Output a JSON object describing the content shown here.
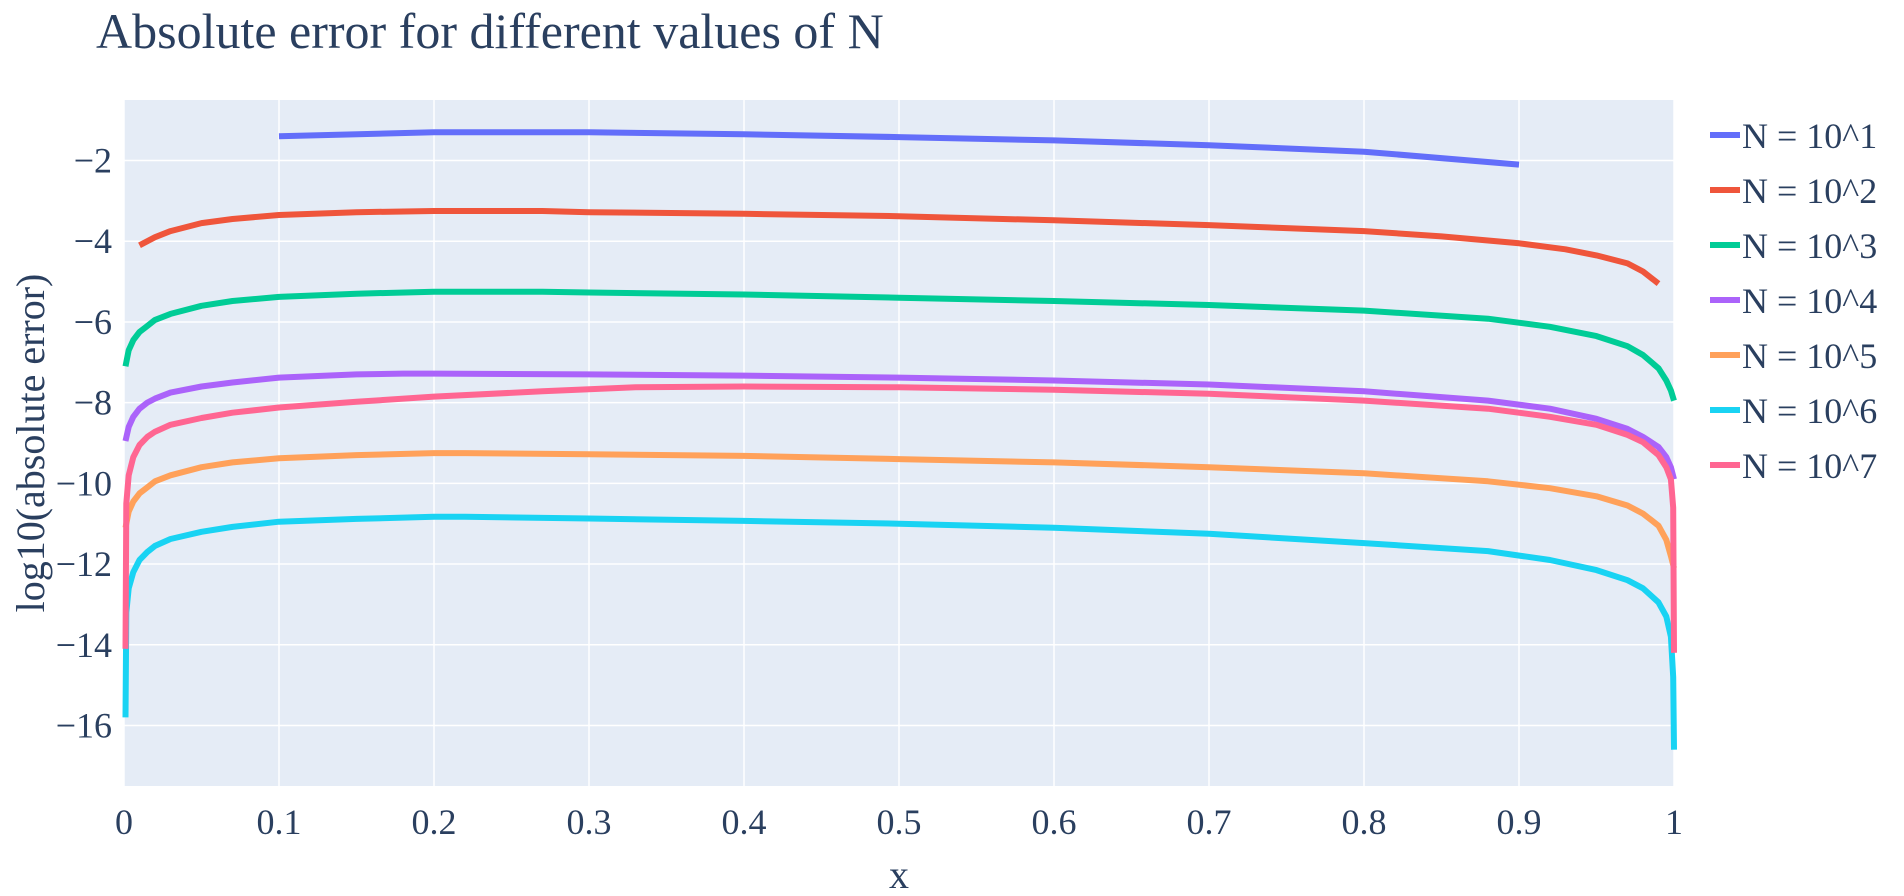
{
  "chart_data": {
    "type": "line",
    "title": "Absolute error for different values of N",
    "xlabel": "x",
    "ylabel": "log10(absolute error)",
    "xlim": [
      0,
      1
    ],
    "ylim": [
      -17.5,
      -0.5
    ],
    "x_ticks": [
      0,
      0.1,
      0.2,
      0.3,
      0.4,
      0.5,
      0.6,
      0.7,
      0.8,
      0.9,
      1
    ],
    "x_tick_labels": [
      "0",
      "0.1",
      "0.2",
      "0.3",
      "0.4",
      "0.5",
      "0.6",
      "0.7",
      "0.8",
      "0.9",
      "1"
    ],
    "y_ticks": [
      -2,
      -4,
      -6,
      -8,
      -10,
      -12,
      -14,
      -16
    ],
    "y_tick_labels": [
      "−2",
      "−4",
      "−6",
      "−8",
      "−10",
      "−12",
      "−14",
      "−16"
    ],
    "grid": true,
    "legend_position": "right",
    "plot_background": "#e5ecf6",
    "grid_color": "#ffffff",
    "series": [
      {
        "name": "N = 10^1",
        "color": "#636efa",
        "x": [
          0.1,
          0.2,
          0.3,
          0.4,
          0.5,
          0.6,
          0.7,
          0.8,
          0.9
        ],
        "y": [
          -1.4,
          -1.3,
          -1.3,
          -1.35,
          -1.42,
          -1.5,
          -1.62,
          -1.78,
          -2.1
        ]
      },
      {
        "name": "N = 10^2",
        "color": "#ef553b",
        "x": [
          0.01,
          0.02,
          0.03,
          0.05,
          0.07,
          0.1,
          0.15,
          0.2,
          0.27,
          0.3,
          0.4,
          0.5,
          0.6,
          0.7,
          0.8,
          0.85,
          0.9,
          0.93,
          0.95,
          0.97,
          0.98,
          0.99
        ],
        "y": [
          -4.1,
          -3.9,
          -3.75,
          -3.55,
          -3.45,
          -3.35,
          -3.28,
          -3.25,
          -3.25,
          -3.28,
          -3.32,
          -3.38,
          -3.48,
          -3.6,
          -3.75,
          -3.88,
          -4.05,
          -4.2,
          -4.35,
          -4.55,
          -4.75,
          -5.05
        ]
      },
      {
        "name": "N = 10^3",
        "color": "#00cc96",
        "x": [
          0.001,
          0.003,
          0.006,
          0.01,
          0.015,
          0.02,
          0.03,
          0.05,
          0.07,
          0.1,
          0.15,
          0.2,
          0.27,
          0.3,
          0.4,
          0.5,
          0.6,
          0.7,
          0.8,
          0.88,
          0.92,
          0.95,
          0.97,
          0.98,
          0.99,
          0.995,
          0.998,
          1.0
        ],
        "y": [
          -7.1,
          -6.7,
          -6.45,
          -6.25,
          -6.1,
          -5.95,
          -5.8,
          -5.6,
          -5.48,
          -5.38,
          -5.3,
          -5.25,
          -5.25,
          -5.27,
          -5.32,
          -5.4,
          -5.48,
          -5.58,
          -5.72,
          -5.92,
          -6.12,
          -6.35,
          -6.6,
          -6.82,
          -7.15,
          -7.45,
          -7.7,
          -7.95
        ]
      },
      {
        "name": "N = 10^4",
        "color": "#ab63fa",
        "x": [
          0.001,
          0.003,
          0.006,
          0.01,
          0.015,
          0.02,
          0.03,
          0.05,
          0.07,
          0.1,
          0.15,
          0.18,
          0.2,
          0.3,
          0.4,
          0.5,
          0.6,
          0.7,
          0.8,
          0.88,
          0.92,
          0.95,
          0.97,
          0.98,
          0.99,
          0.995,
          0.998,
          1.0
        ],
        "y": [
          -8.95,
          -8.6,
          -8.35,
          -8.15,
          -8.0,
          -7.9,
          -7.75,
          -7.6,
          -7.5,
          -7.38,
          -7.3,
          -7.28,
          -7.28,
          -7.3,
          -7.33,
          -7.38,
          -7.45,
          -7.55,
          -7.72,
          -7.95,
          -8.15,
          -8.4,
          -8.65,
          -8.85,
          -9.1,
          -9.35,
          -9.6,
          -9.9
        ]
      },
      {
        "name": "N = 10^5",
        "color": "#ffa15a",
        "x": [
          0.001,
          0.003,
          0.006,
          0.01,
          0.015,
          0.02,
          0.03,
          0.05,
          0.07,
          0.1,
          0.15,
          0.2,
          0.22,
          0.3,
          0.4,
          0.5,
          0.6,
          0.7,
          0.8,
          0.88,
          0.92,
          0.95,
          0.97,
          0.98,
          0.99,
          0.995,
          0.998,
          1.0
        ],
        "y": [
          -11.1,
          -10.7,
          -10.45,
          -10.25,
          -10.1,
          -9.95,
          -9.8,
          -9.6,
          -9.48,
          -9.38,
          -9.3,
          -9.25,
          -9.25,
          -9.28,
          -9.32,
          -9.4,
          -9.48,
          -9.6,
          -9.75,
          -9.95,
          -10.12,
          -10.32,
          -10.55,
          -10.75,
          -11.05,
          -11.4,
          -11.8,
          -12.1
        ]
      },
      {
        "name": "N = 10^6",
        "color": "#19d3f3",
        "x": [
          0.001,
          0.0015,
          0.003,
          0.006,
          0.01,
          0.015,
          0.02,
          0.03,
          0.05,
          0.07,
          0.1,
          0.15,
          0.2,
          0.22,
          0.3,
          0.4,
          0.5,
          0.6,
          0.7,
          0.8,
          0.88,
          0.92,
          0.95,
          0.97,
          0.98,
          0.99,
          0.995,
          0.998,
          0.9995,
          1.0
        ],
        "y": [
          -15.8,
          -13.2,
          -12.6,
          -12.2,
          -11.9,
          -11.7,
          -11.55,
          -11.38,
          -11.2,
          -11.08,
          -10.95,
          -10.88,
          -10.83,
          -10.83,
          -10.87,
          -10.93,
          -11.0,
          -11.1,
          -11.25,
          -11.48,
          -11.68,
          -11.9,
          -12.15,
          -12.4,
          -12.6,
          -12.95,
          -13.3,
          -13.8,
          -14.8,
          -16.6
        ]
      },
      {
        "name": "N = 10^7",
        "color": "#ff6692",
        "x": [
          0.001,
          0.0015,
          0.003,
          0.006,
          0.01,
          0.015,
          0.02,
          0.03,
          0.05,
          0.07,
          0.1,
          0.15,
          0.2,
          0.27,
          0.33,
          0.4,
          0.5,
          0.6,
          0.7,
          0.8,
          0.88,
          0.92,
          0.95,
          0.97,
          0.98,
          0.99,
          0.995,
          0.998,
          0.9995,
          1.0
        ],
        "y": [
          -14.1,
          -10.5,
          -9.8,
          -9.35,
          -9.05,
          -8.85,
          -8.72,
          -8.55,
          -8.38,
          -8.25,
          -8.12,
          -7.98,
          -7.85,
          -7.72,
          -7.62,
          -7.6,
          -7.62,
          -7.68,
          -7.78,
          -7.95,
          -8.15,
          -8.35,
          -8.55,
          -8.8,
          -8.98,
          -9.3,
          -9.6,
          -9.9,
          -10.6,
          -14.2
        ]
      }
    ]
  }
}
